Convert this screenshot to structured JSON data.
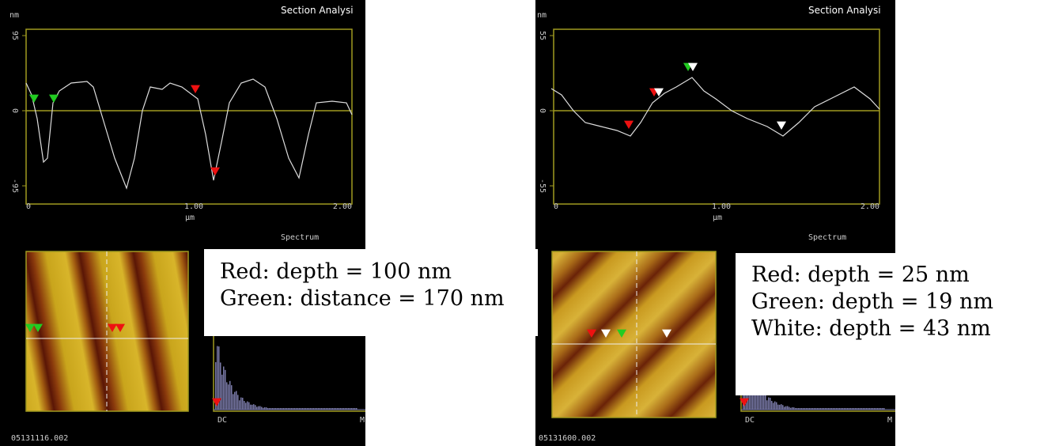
{
  "panels": [
    {
      "unit": "nm",
      "title": "Section Analysi",
      "yticks": [
        "95",
        "0",
        "-95"
      ],
      "xticks": [
        "0",
        "1.00",
        "2.00"
      ],
      "xlabel": "µm",
      "spectrum_title": "Spectrum",
      "spectrum_xticks": [
        "DC",
        "M"
      ],
      "filename": "05131116.002",
      "notes": [
        "Red: depth = 100 nm",
        "Green: distance = 170 nm"
      ]
    },
    {
      "unit": "nm",
      "title": "Section Analysi",
      "yticks": [
        "55",
        "0",
        "-55"
      ],
      "xticks": [
        "0",
        "1.00",
        "2.00"
      ],
      "xlabel": "µm",
      "spectrum_title": "Spectrum",
      "spectrum_xticks": [
        "DC",
        "M"
      ],
      "filename": "05131600.002",
      "notes": [
        "Red: depth = 25 nm",
        "Green: depth = 19 nm",
        "White: depth =  43 nm"
      ]
    }
  ]
}
